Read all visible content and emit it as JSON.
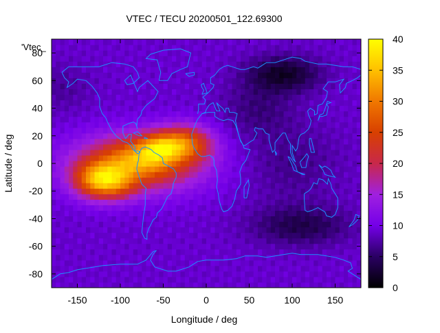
{
  "chart_data": {
    "type": "heatmap",
    "title": "VTEC / TECU 20200501_122.69300",
    "key_label": "'Vtec_",
    "xlabel": "Longitude / deg",
    "ylabel": "Latitude / deg",
    "xlim": [
      -180,
      180
    ],
    "ylim": [
      -90,
      90
    ],
    "xticks": [
      -150,
      -100,
      -50,
      0,
      50,
      100,
      150
    ],
    "yticks": [
      -80,
      -60,
      -40,
      -20,
      0,
      20,
      40,
      60,
      80
    ],
    "colorbar": {
      "min": 0,
      "max": 40,
      "ticks": [
        0,
        5,
        10,
        15,
        20,
        25,
        30,
        35,
        40
      ],
      "palette": [
        "#000000",
        "#2a0063",
        "#7400e8",
        "#a020e0",
        "#c8284a",
        "#d84000",
        "#f07800",
        "#ffc000",
        "#ffff00"
      ]
    },
    "background_vtec": 9,
    "features": [
      {
        "name": "equatorial-anomaly-north-crest",
        "lon": -25,
        "lat": 15,
        "peak": 30
      },
      {
        "name": "equatorial-anomaly-south-crest",
        "lon": -125,
        "lat": -12,
        "peak": 33
      },
      {
        "name": "equatorial-anomaly-central",
        "lon": -75,
        "lat": 5,
        "peak": 28
      },
      {
        "name": "northern-minimum",
        "lon": 90,
        "lat": 65,
        "peak": 2
      },
      {
        "name": "southern-minimum",
        "lon": 110,
        "lat": -45,
        "peak": 3
      }
    ],
    "overlay": "coastlines"
  }
}
